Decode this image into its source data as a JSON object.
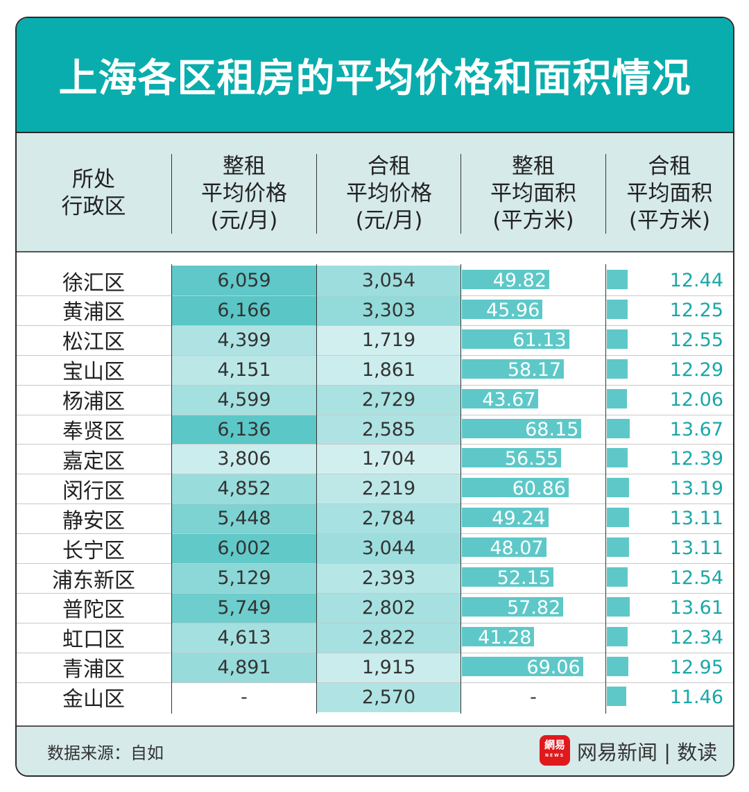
{
  "title": "上海各区租房的平均价格和面积情况",
  "headers": [
    "所处\n行政区",
    "整租\n平均价格\n(元/月)",
    "合租\n平均价格\n(元/月)",
    "整租\n平均面积\n(平方米)",
    "合租\n平均面积\n(平方米)"
  ],
  "chart_data": {
    "type": "table",
    "title": "上海各区租房的平均价格和面积情况",
    "columns": [
      "所处行政区",
      "整租平均价格(元/月)",
      "合租平均价格(元/月)",
      "整租平均面积(平方米)",
      "合租平均面积(平方米)"
    ],
    "rows": [
      {
        "district": "徐汇区",
        "whole_price": "6,059",
        "shared_price": "3,054",
        "whole_area": "49.82",
        "shared_area": "12.44"
      },
      {
        "district": "黄浦区",
        "whole_price": "6,166",
        "shared_price": "3,303",
        "whole_area": "45.96",
        "shared_area": "12.25"
      },
      {
        "district": "松江区",
        "whole_price": "4,399",
        "shared_price": "1,719",
        "whole_area": "61.13",
        "shared_area": "12.55"
      },
      {
        "district": "宝山区",
        "whole_price": "4,151",
        "shared_price": "1,861",
        "whole_area": "58.17",
        "shared_area": "12.29"
      },
      {
        "district": "杨浦区",
        "whole_price": "4,599",
        "shared_price": "2,729",
        "whole_area": "43.67",
        "shared_area": "12.06"
      },
      {
        "district": "奉贤区",
        "whole_price": "6,136",
        "shared_price": "2,585",
        "whole_area": "68.15",
        "shared_area": "13.67"
      },
      {
        "district": "嘉定区",
        "whole_price": "3,806",
        "shared_price": "1,704",
        "whole_area": "56.55",
        "shared_area": "12.39"
      },
      {
        "district": "闵行区",
        "whole_price": "4,852",
        "shared_price": "2,219",
        "whole_area": "60.86",
        "shared_area": "13.19"
      },
      {
        "district": "静安区",
        "whole_price": "5,448",
        "shared_price": "2,784",
        "whole_area": "49.24",
        "shared_area": "13.11"
      },
      {
        "district": "长宁区",
        "whole_price": "6,002",
        "shared_price": "3,044",
        "whole_area": "48.07",
        "shared_area": "13.11"
      },
      {
        "district": "浦东新区",
        "whole_price": "5,129",
        "shared_price": "2,393",
        "whole_area": "52.15",
        "shared_area": "12.54"
      },
      {
        "district": "普陀区",
        "whole_price": "5,749",
        "shared_price": "2,802",
        "whole_area": "57.82",
        "shared_area": "13.61"
      },
      {
        "district": "虹口区",
        "whole_price": "4,613",
        "shared_price": "2,822",
        "whole_area": "41.28",
        "shared_area": "12.34"
      },
      {
        "district": "青浦区",
        "whole_price": "4,891",
        "shared_price": "1,915",
        "whole_area": "69.06",
        "shared_area": "12.95"
      },
      {
        "district": "金山区",
        "whole_price": "-",
        "shared_price": "2,570",
        "whole_area": "-",
        "shared_area": "11.46"
      }
    ]
  },
  "colors": {
    "accent": "#0aadad",
    "bar": "#5ec8c8",
    "light": "#d7eaea"
  },
  "footer": {
    "source": "数据来源：自如",
    "logo_text": "網易",
    "logo_sub": "NEWS",
    "brand": "网易新闻 | 数读"
  }
}
